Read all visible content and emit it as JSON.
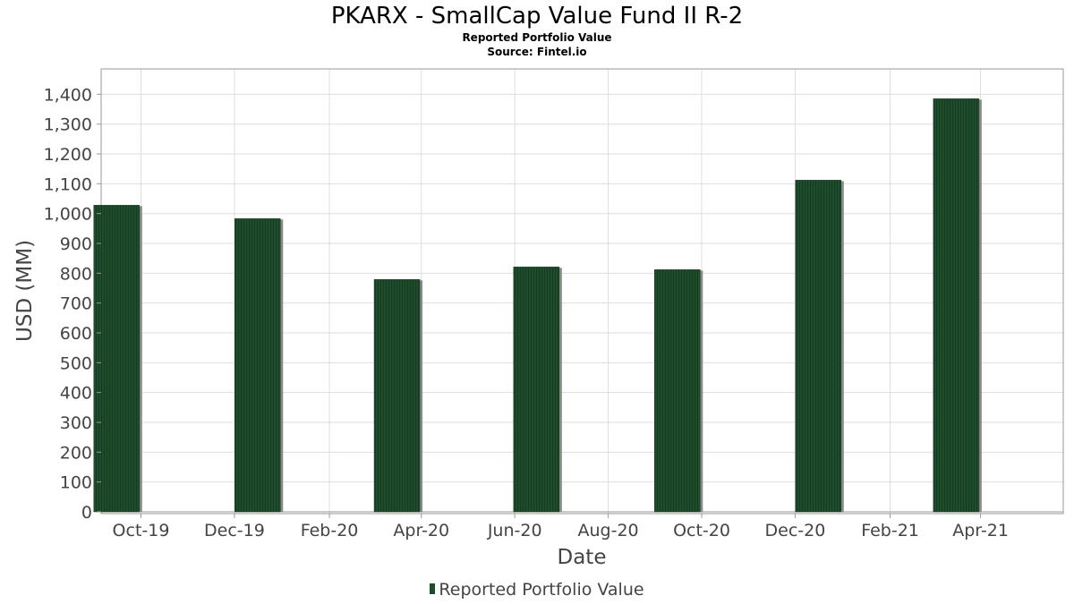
{
  "chart_data": {
    "type": "bar",
    "title": "PKARX - SmallCap Value Fund II R-2",
    "subtitle": "Reported Portfolio Value",
    "source": "Source: Fintel.io",
    "xlabel": "Date",
    "ylabel": "USD (MM)",
    "ylim": [
      0,
      1450
    ],
    "yticks": [
      0,
      100,
      200,
      300,
      400,
      500,
      600,
      700,
      800,
      900,
      1000,
      1100,
      1200,
      1300,
      1400
    ],
    "ytick_labels": [
      "0",
      "100",
      "200",
      "300",
      "400",
      "500",
      "600",
      "700",
      "800",
      "900",
      "1,000",
      "1,100",
      "1,200",
      "1,300",
      "1,400"
    ],
    "xlim": [
      "2019-09-05",
      "2021-05-25"
    ],
    "xticks": [
      "2019-10-01",
      "2019-12-01",
      "2020-02-01",
      "2020-04-01",
      "2020-06-01",
      "2020-08-01",
      "2020-10-01",
      "2020-12-01",
      "2021-02-01",
      "2021-04-01"
    ],
    "xtick_labels": [
      "Oct-19",
      "Dec-19",
      "Feb-20",
      "Apr-20",
      "Jun-20",
      "Aug-20",
      "Oct-20",
      "Dec-20",
      "Feb-21",
      "Apr-21"
    ],
    "grid": true,
    "legend_position": "bottom",
    "colors": {
      "bar": "#1e4d2b",
      "bar_stripe": "#163b20",
      "shadow": "#8a8a8a",
      "grid": "#dddddd",
      "frame": "#999999"
    },
    "series": [
      {
        "name": "Reported Portfolio Value",
        "points": [
          {
            "date": "2019-09-30",
            "value": 1028
          },
          {
            "date": "2019-12-31",
            "value": 983
          },
          {
            "date": "2020-03-31",
            "value": 779
          },
          {
            "date": "2020-06-30",
            "value": 821
          },
          {
            "date": "2020-09-30",
            "value": 812
          },
          {
            "date": "2020-12-31",
            "value": 1112
          },
          {
            "date": "2021-03-31",
            "value": 1385
          }
        ]
      }
    ]
  }
}
